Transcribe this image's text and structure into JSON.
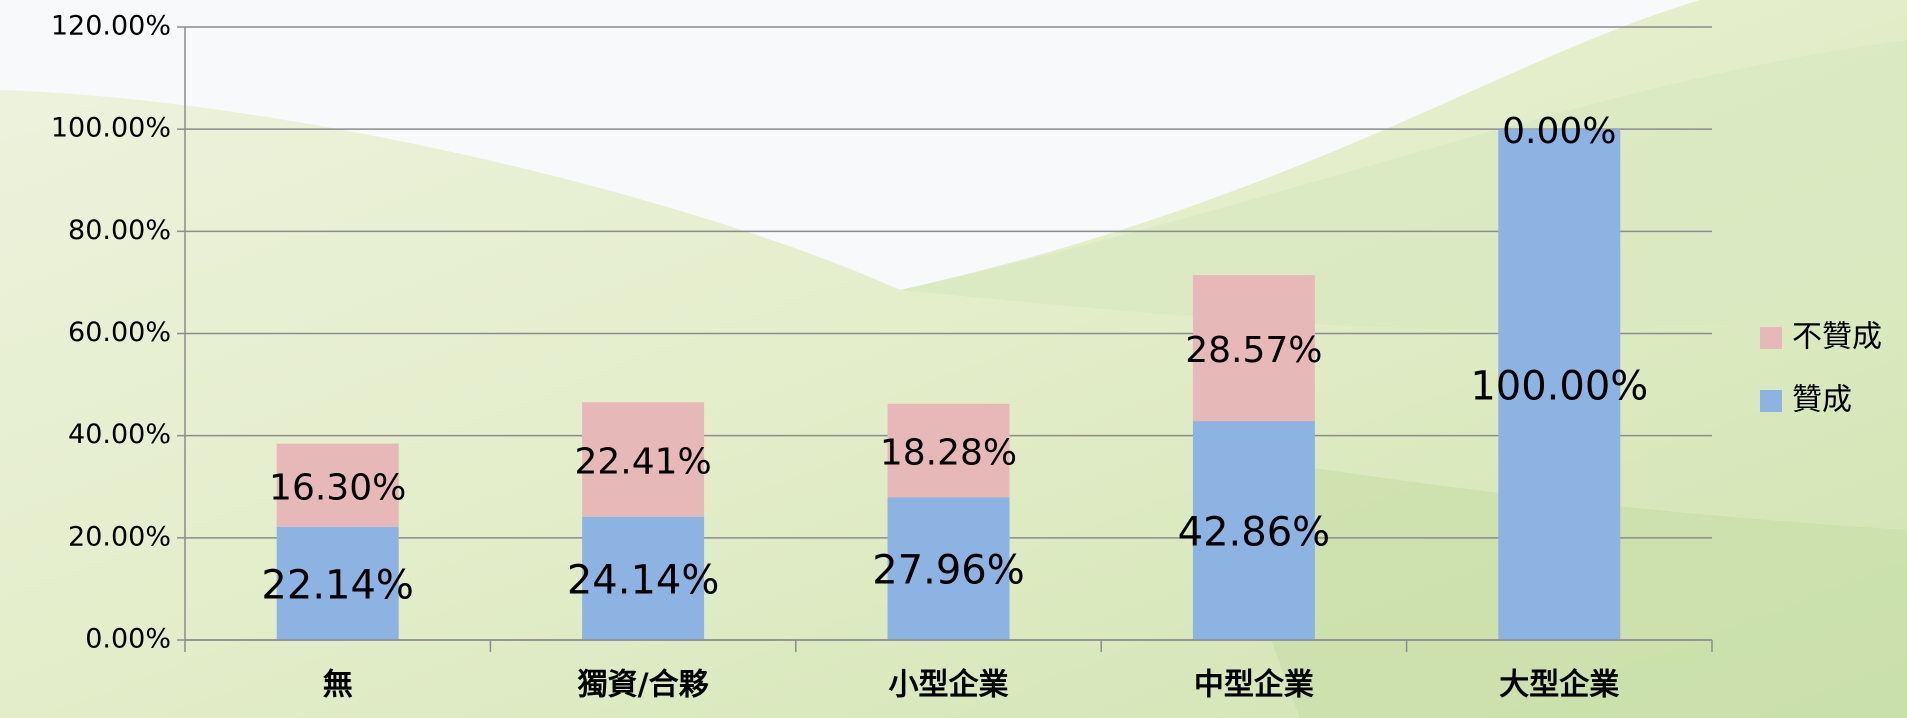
{
  "chart_data": {
    "type": "stacked_bar",
    "categories": [
      "無",
      "獨資/合夥",
      "小型企業",
      "中型企業",
      "大型企業"
    ],
    "series": [
      {
        "name": "贊成",
        "color": "#8db3e2",
        "values": [
          22.14,
          24.14,
          27.96,
          42.86,
          100.0
        ],
        "value_labels": [
          "22.14%",
          "24.14%",
          "27.96%",
          "42.86%",
          "100.00%"
        ]
      },
      {
        "name": "不贊成",
        "color": "#e6b9b8",
        "values": [
          16.3,
          22.41,
          18.28,
          28.57,
          0.0
        ],
        "value_labels": [
          "16.30%",
          "22.41%",
          "18.28%",
          "28.57%",
          "0.00%"
        ]
      }
    ],
    "ylim": [
      0,
      120
    ],
    "yticks": [
      {
        "value": 0,
        "label": "0.00%"
      },
      {
        "value": 20,
        "label": "20.00%"
      },
      {
        "value": 40,
        "label": "40.00%"
      },
      {
        "value": 60,
        "label": "60.00%"
      },
      {
        "value": 80,
        "label": "80.00%"
      },
      {
        "value": 100,
        "label": "100.00%"
      },
      {
        "value": 120,
        "label": "120.00%"
      }
    ],
    "grid": true,
    "legend": "right"
  }
}
